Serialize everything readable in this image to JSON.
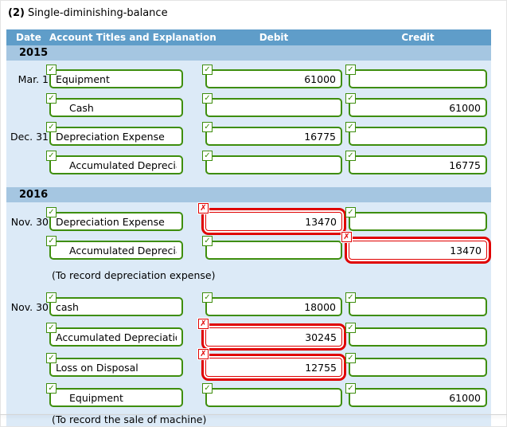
{
  "title": {
    "prefix": "(2)",
    "text": "Single-diminishing-balance"
  },
  "icons": {
    "correct": "✓",
    "incorrect": "✗"
  },
  "colors": {
    "header_bg": "#5f9dc9",
    "year_band_bg": "#a5c6e1",
    "rows_bg": "#dceaf7",
    "valid_green": "#3e8e0d",
    "error_red": "#e00000",
    "header_text": "#ffffff"
  },
  "table": {
    "headers": {
      "date": "Date",
      "account": "Account Titles and Explanation",
      "debit": "Debit",
      "credit": "Credit"
    },
    "sections": [
      {
        "year": "2015",
        "rows": [
          {
            "date": "Mar. 1",
            "account": "Equipment",
            "indent": false,
            "account_status": "correct",
            "debit": "61000",
            "debit_status": "correct",
            "credit": "",
            "credit_status": "correct"
          },
          {
            "date": "",
            "account": "Cash",
            "indent": true,
            "account_status": "correct",
            "debit": "",
            "debit_status": "correct",
            "credit": "61000",
            "credit_status": "correct"
          },
          {
            "date": "Dec. 31",
            "account": "Depreciation Expense",
            "indent": false,
            "account_status": "correct",
            "debit": "16775",
            "debit_status": "correct",
            "credit": "",
            "credit_status": "correct"
          },
          {
            "date": "",
            "account": "Accumulated Depreciati",
            "indent": true,
            "account_status": "correct",
            "debit": "",
            "debit_status": "correct",
            "credit": "16775",
            "credit_status": "correct"
          }
        ]
      },
      {
        "year": "2016",
        "rows": [
          {
            "date": "Nov. 30",
            "account": "Depreciation Expense",
            "indent": false,
            "account_status": "correct",
            "debit": "13470",
            "debit_status": "incorrect",
            "credit": "",
            "credit_status": "correct"
          },
          {
            "date": "",
            "account": "Accumulated Depreciati",
            "indent": true,
            "account_status": "correct",
            "debit": "",
            "debit_status": "correct",
            "credit": "13470",
            "credit_status": "incorrect"
          },
          {
            "caption": "(To record depreciation expense)"
          },
          {
            "date": "Nov. 30",
            "account": "cash",
            "indent": false,
            "account_status": "correct",
            "debit": "18000",
            "debit_status": "correct",
            "credit": "",
            "credit_status": "correct"
          },
          {
            "date": "",
            "account": "Accumulated Depreciation",
            "indent": false,
            "account_status": "correct",
            "debit": "30245",
            "debit_status": "incorrect",
            "credit": "",
            "credit_status": "correct"
          },
          {
            "date": "",
            "account": "Loss on Disposal",
            "indent": false,
            "account_status": "correct",
            "debit": "12755",
            "debit_status": "incorrect",
            "credit": "",
            "credit_status": "correct"
          },
          {
            "date": "",
            "account": "Equipment",
            "indent": true,
            "account_status": "correct",
            "debit": "",
            "debit_status": "correct",
            "credit": "61000",
            "credit_status": "correct"
          },
          {
            "caption": "(To record the sale of machine)"
          }
        ]
      }
    ]
  }
}
